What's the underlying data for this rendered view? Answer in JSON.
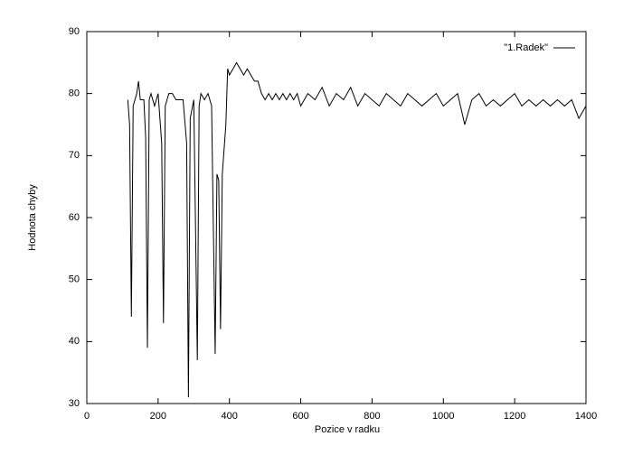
{
  "chart_data": {
    "type": "line",
    "xlabel": "Pozice v radku",
    "ylabel": "Hodnota chyby",
    "x": [
      115,
      120,
      125,
      130,
      140,
      145,
      150,
      160,
      165,
      170,
      175,
      180,
      190,
      200,
      210,
      215,
      220,
      230,
      240,
      250,
      260,
      270,
      280,
      285,
      290,
      300,
      310,
      315,
      320,
      330,
      340,
      350,
      360,
      365,
      370,
      375,
      380,
      390,
      395,
      400,
      410,
      420,
      430,
      440,
      450,
      460,
      470,
      480,
      490,
      500,
      510,
      520,
      530,
      540,
      550,
      560,
      570,
      580,
      590,
      600,
      620,
      640,
      660,
      680,
      700,
      720,
      740,
      760,
      780,
      800,
      820,
      840,
      860,
      880,
      900,
      920,
      940,
      960,
      980,
      1000,
      1020,
      1040,
      1060,
      1080,
      1100,
      1120,
      1140,
      1160,
      1180,
      1200,
      1220,
      1240,
      1260,
      1280,
      1300,
      1320,
      1340,
      1360,
      1380,
      1400
    ],
    "series": [
      {
        "name": "\"1.Radek\"",
        "color": "#000000",
        "values": [
          79,
          75,
          44,
          78,
          80,
          82,
          79,
          79,
          73,
          39,
          79,
          80,
          78,
          80,
          72,
          43,
          78,
          80,
          80,
          79,
          79,
          79,
          72,
          31,
          76,
          79,
          37,
          78,
          80,
          79,
          80,
          78,
          38,
          67,
          66,
          42,
          67,
          75,
          84,
          83,
          84,
          85,
          84,
          83,
          84,
          83,
          82,
          82,
          80,
          79,
          80,
          79,
          80,
          79,
          80,
          79,
          80,
          79,
          80,
          78,
          80,
          79,
          81,
          78,
          80,
          79,
          81,
          78,
          80,
          79,
          78,
          80,
          79,
          78,
          80,
          79,
          78,
          79,
          80,
          78,
          79,
          80,
          75,
          79,
          80,
          78,
          79,
          78,
          79,
          80,
          78,
          79,
          78,
          79,
          78,
          79,
          78,
          79,
          76,
          78
        ]
      }
    ],
    "xlim": [
      0,
      1400
    ],
    "xticks": [
      0,
      200,
      400,
      600,
      800,
      1000,
      1200,
      1400
    ],
    "ylim": [
      30,
      90
    ],
    "yticks": [
      30,
      40,
      50,
      60,
      70,
      80,
      90
    ],
    "legend": "top-right"
  }
}
